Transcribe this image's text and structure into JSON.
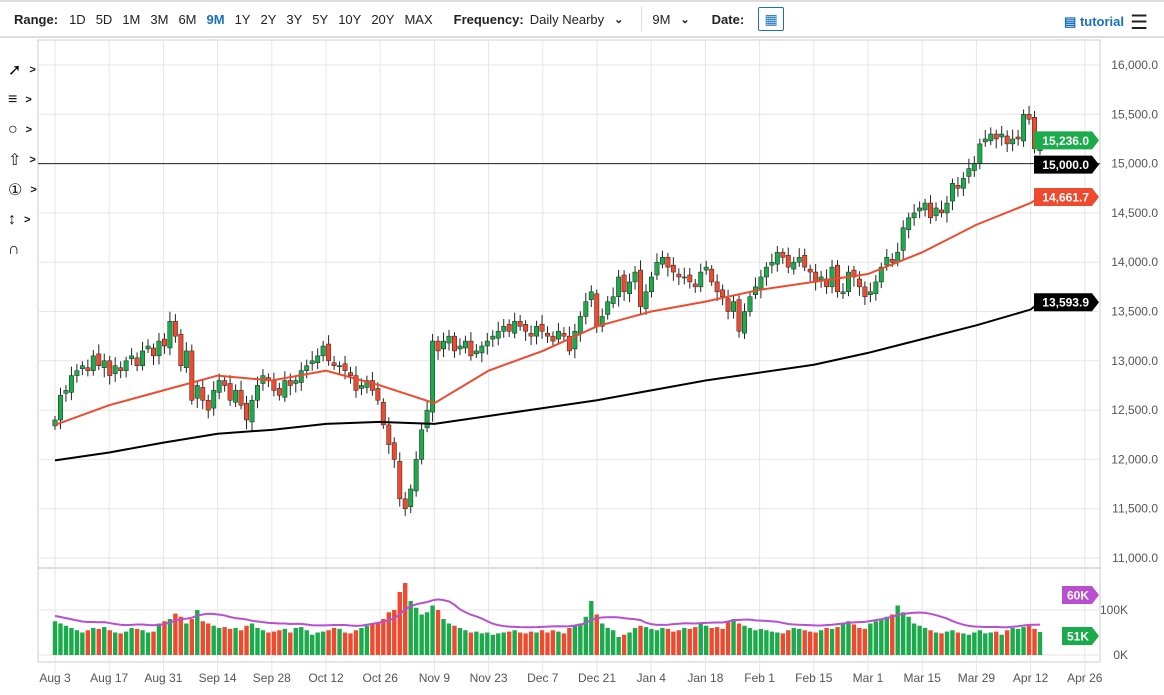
{
  "toolbar": {
    "range_label": "Range:",
    "ranges": [
      "1D",
      "5D",
      "1M",
      "3M",
      "6M",
      "9M",
      "1Y",
      "2Y",
      "3Y",
      "5Y",
      "10Y",
      "20Y",
      "MAX"
    ],
    "active_range": "9M",
    "frequency_label": "Frequency:",
    "frequency_value": "Daily Nearby",
    "period_value": "9M",
    "date_label": "Date:",
    "tutorial": "tutorial"
  },
  "tools": [
    "trendline-icon",
    "fib-icon",
    "shape-icon",
    "arrow-icon",
    "number-1-icon",
    "measure-icon",
    "magnet-icon"
  ],
  "colors": {
    "up": "#1aab4b",
    "down": "#f04a2e",
    "ma50": "#f04a2e",
    "ma200": "#000000",
    "volume_ma": "#b84fd1"
  },
  "chart_data": {
    "type": "candlestick",
    "ylim": [
      11000,
      16000
    ],
    "y_ticks": [
      "16,000.0",
      "15,500.0",
      "15,000.0",
      "14,500.0",
      "14,000.0",
      "13,500.0",
      "13,000.0",
      "12,500.0",
      "12,000.0",
      "11,500.0",
      "11,000.0"
    ],
    "x_ticks": [
      "Aug 3",
      "Aug 17",
      "Aug 31",
      "Sep 14",
      "Sep 28",
      "Oct 12",
      "Oct 26",
      "Nov 9",
      "Nov 23",
      "Dec 7",
      "Dec 21",
      "Jan 4",
      "Jan 18",
      "Feb 1",
      "Feb 15",
      "Mar 1",
      "Mar 15",
      "Mar 29",
      "Apr 12",
      "Apr 26"
    ],
    "closes": [
      12400,
      12650,
      12700,
      12850,
      12900,
      12950,
      12900,
      13050,
      12950,
      13000,
      12850,
      12950,
      12900,
      13000,
      13050,
      12950,
      13100,
      13150,
      13050,
      13200,
      13150,
      13400,
      13250,
      12950,
      13100,
      12600,
      12750,
      12600,
      12500,
      12700,
      12800,
      12750,
      12600,
      12700,
      12550,
      12400,
      12600,
      12750,
      12850,
      12800,
      12700,
      12650,
      12800,
      12750,
      12800,
      12900,
      12950,
      13000,
      13050,
      13150,
      13000,
      12950,
      12950,
      12900,
      12850,
      12700,
      12750,
      12800,
      12700,
      12600,
      12350,
      12150,
      12000,
      11600,
      11500,
      11700,
      12000,
      12300,
      12500,
      13200,
      13100,
      13200,
      13250,
      13100,
      13150,
      13200,
      13050,
      13100,
      13150,
      13200,
      13250,
      13300,
      13350,
      13300,
      13400,
      13350,
      13300,
      13250,
      13350,
      13300,
      13250,
      13200,
      13300,
      13250,
      13100,
      13300,
      13450,
      13600,
      13700,
      13350,
      13450,
      13600,
      13650,
      13850,
      13700,
      13800,
      13900,
      13550,
      13700,
      13850,
      14000,
      14050,
      13950,
      13900,
      13850,
      13850,
      13800,
      13750,
      13900,
      13950,
      13800,
      13700,
      13650,
      13500,
      13600,
      13300,
      13500,
      13650,
      13750,
      13850,
      13950,
      14000,
      14100,
      14050,
      13950,
      14000,
      14050,
      13950,
      13900,
      13800,
      13850,
      13750,
      13950,
      13700,
      13700,
      13900,
      13850,
      13750,
      13650,
      13700,
      13800,
      13950,
      14050,
      14000,
      14100,
      14350,
      14450,
      14500,
      14550,
      14600,
      14450,
      14550,
      14500,
      14600,
      14800,
      14750,
      14850,
      14950,
      15000,
      15200,
      15250,
      15300,
      15250,
      15300,
      15200,
      15250,
      15250,
      15500,
      15450,
      15150,
      15236
    ],
    "ma50": {
      "points_at_x_ticks": [
        12350,
        12550,
        12700,
        12850,
        12800,
        12900,
        12750,
        12570,
        12900,
        13100,
        13350,
        13500,
        13600,
        13720,
        13800,
        13880,
        14100,
        14380,
        14600
      ],
      "last": 14661.7
    },
    "ma200": {
      "points_at_x_ticks": [
        11990,
        12070,
        12170,
        12260,
        12300,
        12360,
        12380,
        12360,
        12440,
        12520,
        12600,
        12700,
        12800,
        12880,
        12960,
        13080,
        13220,
        13360,
        13520
      ],
      "last": 13593.9
    },
    "reference_line": 15000,
    "price_labels": {
      "last": "15,236.0",
      "reference": "15,000.0",
      "ma50": "14,661.7",
      "ma200": "13,593.9"
    },
    "volume": {
      "unit": "K",
      "ticks": [
        "100K",
        "0K"
      ],
      "values": [
        75,
        70,
        65,
        60,
        55,
        50,
        55,
        60,
        58,
        62,
        55,
        50,
        48,
        52,
        60,
        58,
        55,
        50,
        52,
        70,
        75,
        80,
        92,
        85,
        70,
        80,
        100,
        75,
        70,
        65,
        60,
        62,
        58,
        60,
        55,
        65,
        70,
        60,
        55,
        50,
        52,
        55,
        58,
        50,
        60,
        62,
        55,
        45,
        50,
        52,
        55,
        60,
        58,
        50,
        48,
        55,
        60,
        65,
        70,
        72,
        80,
        95,
        100,
        140,
        160,
        120,
        105,
        90,
        95,
        110,
        100,
        80,
        70,
        65,
        60,
        55,
        50,
        52,
        48,
        50,
        45,
        48,
        50,
        52,
        55,
        50,
        48,
        52,
        50,
        55,
        50,
        55,
        52,
        48,
        60,
        65,
        70,
        85,
        120,
        90,
        70,
        60,
        55,
        40,
        45,
        50,
        60,
        65,
        62,
        58,
        55,
        60,
        58,
        52,
        55,
        60,
        58,
        62,
        70,
        65,
        60,
        62,
        58,
        75,
        80,
        70,
        65,
        60,
        55,
        58,
        55,
        52,
        50,
        48,
        55,
        60,
        58,
        55,
        52,
        50,
        55,
        60,
        58,
        62,
        70,
        75,
        68,
        60,
        58,
        70,
        75,
        80,
        85,
        90,
        110,
        95,
        85,
        70,
        65,
        60,
        55,
        50,
        48,
        52,
        55,
        50,
        48,
        45,
        50,
        55,
        48,
        50,
        52,
        45,
        55,
        60,
        58,
        62,
        65,
        58,
        51
      ],
      "last_label": "51K",
      "ma_label": "60K"
    }
  }
}
